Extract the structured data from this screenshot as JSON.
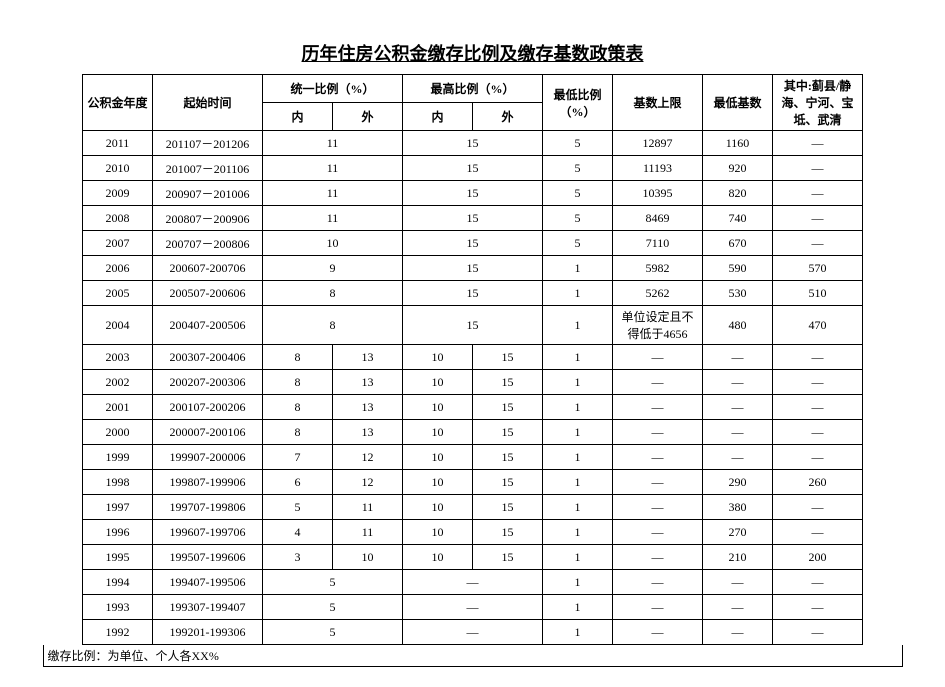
{
  "title": "历年住房公积金缴存比例及缴存基数政策表",
  "headers": {
    "year": "公积金年度",
    "period": "起始时间",
    "unified": "统一比例（%）",
    "max": "最高比例（%）",
    "inner": "内",
    "outer": "外",
    "minRatio": "最低比例（%）",
    "baseMax": "基数上限",
    "baseMin": "最低基数",
    "district": "其中:蓟县/静海、宁河、宝坻、武清"
  },
  "footnote": "缴存比例：为单位、个人各XX%",
  "dash": "—",
  "rows": [
    {
      "year": "2011",
      "period": "201107－201206",
      "u_in": "11",
      "u_out": "",
      "m_in": "15",
      "m_out": "",
      "min": "5",
      "bmax": "12897",
      "bmin": "1160",
      "dist": "—",
      "merge_u": true,
      "merge_m": true
    },
    {
      "year": "2010",
      "period": "201007－201106",
      "u_in": "11",
      "u_out": "",
      "m_in": "15",
      "m_out": "",
      "min": "5",
      "bmax": "11193",
      "bmin": "920",
      "dist": "—",
      "merge_u": true,
      "merge_m": true
    },
    {
      "year": "2009",
      "period": "200907－201006",
      "u_in": "11",
      "u_out": "",
      "m_in": "15",
      "m_out": "",
      "min": "5",
      "bmax": "10395",
      "bmin": "820",
      "dist": "—",
      "merge_u": true,
      "merge_m": true
    },
    {
      "year": "2008",
      "period": "200807－200906",
      "u_in": "11",
      "u_out": "",
      "m_in": "15",
      "m_out": "",
      "min": "5",
      "bmax": "8469",
      "bmin": "740",
      "dist": "—",
      "merge_u": true,
      "merge_m": true
    },
    {
      "year": "2007",
      "period": "200707－200806",
      "u_in": "10",
      "u_out": "",
      "m_in": "15",
      "m_out": "",
      "min": "5",
      "bmax": "7110",
      "bmin": "670",
      "dist": "—",
      "merge_u": true,
      "merge_m": true
    },
    {
      "year": "2006",
      "period": "200607-200706",
      "u_in": "9",
      "u_out": "",
      "m_in": "15",
      "m_out": "",
      "min": "1",
      "bmax": "5982",
      "bmin": "590",
      "dist": "570",
      "merge_u": true,
      "merge_m": true
    },
    {
      "year": "2005",
      "period": "200507-200606",
      "u_in": "8",
      "u_out": "",
      "m_in": "15",
      "m_out": "",
      "min": "1",
      "bmax": "5262",
      "bmin": "530",
      "dist": "510",
      "merge_u": true,
      "merge_m": true
    },
    {
      "year": "2004",
      "period": "200407-200506",
      "u_in": "8",
      "u_out": "",
      "m_in": "15",
      "m_out": "",
      "min": "1",
      "bmax": "单位设定且不得低于4656",
      "bmin": "480",
      "dist": "470",
      "merge_u": true,
      "merge_m": true,
      "tall": true
    },
    {
      "year": "2003",
      "period": "200307-200406",
      "u_in": "8",
      "u_out": "13",
      "m_in": "10",
      "m_out": "15",
      "min": "1",
      "bmax": "—",
      "bmin": "—",
      "dist": "—"
    },
    {
      "year": "2002",
      "period": "200207-200306",
      "u_in": "8",
      "u_out": "13",
      "m_in": "10",
      "m_out": "15",
      "min": "1",
      "bmax": "—",
      "bmin": "—",
      "dist": "—"
    },
    {
      "year": "2001",
      "period": "200107-200206",
      "u_in": "8",
      "u_out": "13",
      "m_in": "10",
      "m_out": "15",
      "min": "1",
      "bmax": "—",
      "bmin": "—",
      "dist": "—"
    },
    {
      "year": "2000",
      "period": "200007-200106",
      "u_in": "8",
      "u_out": "13",
      "m_in": "10",
      "m_out": "15",
      "min": "1",
      "bmax": "—",
      "bmin": "—",
      "dist": "—"
    },
    {
      "year": "1999",
      "period": "199907-200006",
      "u_in": "7",
      "u_out": "12",
      "m_in": "10",
      "m_out": "15",
      "min": "1",
      "bmax": "—",
      "bmin": "—",
      "dist": "—"
    },
    {
      "year": "1998",
      "period": "199807-199906",
      "u_in": "6",
      "u_out": "12",
      "m_in": "10",
      "m_out": "15",
      "min": "1",
      "bmax": "—",
      "bmin": "290",
      "dist": "260"
    },
    {
      "year": "1997",
      "period": "199707-199806",
      "u_in": "5",
      "u_out": "11",
      "m_in": "10",
      "m_out": "15",
      "min": "1",
      "bmax": "—",
      "bmin": "380",
      "dist": "—"
    },
    {
      "year": "1996",
      "period": "199607-199706",
      "u_in": "4",
      "u_out": "11",
      "m_in": "10",
      "m_out": "15",
      "min": "1",
      "bmax": "—",
      "bmin": "270",
      "dist": "—"
    },
    {
      "year": "1995",
      "period": "199507-199606",
      "u_in": "3",
      "u_out": "10",
      "m_in": "10",
      "m_out": "15",
      "min": "1",
      "bmax": "—",
      "bmin": "210",
      "dist": "200"
    },
    {
      "year": "1994",
      "period": "199407-199506",
      "u_in": "5",
      "u_out": "—",
      "m_in": "—",
      "m_out": "—",
      "min": "1",
      "bmax": "—",
      "bmin": "—",
      "dist": "—",
      "merge_u": true,
      "merge_m": true,
      "u_val": "5",
      "m_val": "—"
    },
    {
      "year": "1993",
      "period": "199307-199407",
      "u_in": "5",
      "u_out": "—",
      "m_in": "—",
      "m_out": "—",
      "min": "1",
      "bmax": "—",
      "bmin": "—",
      "dist": "—",
      "merge_u": true,
      "merge_m": true,
      "u_val": "5",
      "m_val": "—"
    },
    {
      "year": "1992",
      "period": "199201-199306",
      "u_in": "5",
      "u_out": "—",
      "m_in": "—",
      "m_out": "—",
      "min": "1",
      "bmax": "—",
      "bmin": "—",
      "dist": "—",
      "merge_u": true,
      "merge_m": true,
      "u_val": "5",
      "m_val": "—"
    }
  ],
  "style": {
    "border_color": "#000000",
    "background_color": "#ffffff",
    "title_fontsize": 18,
    "cell_fontsize": 12,
    "font_family": "SimSun"
  }
}
